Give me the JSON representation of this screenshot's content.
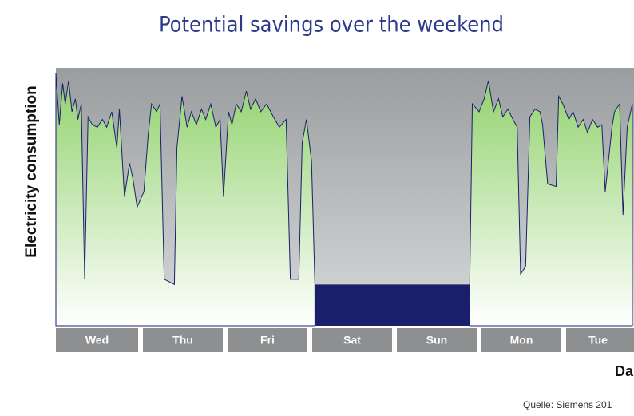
{
  "chart_data": {
    "type": "area",
    "title": "Potential savings over the weekend",
    "ylabel": "Electricity consumption",
    "xlabel": "Da",
    "source": "Quelle: Siemens 201",
    "categories": [
      "Wed",
      "Thu",
      "Fri",
      "Sat",
      "Sun",
      "Mon",
      "Tue"
    ],
    "xlim": [
      0,
      6.83
    ],
    "ylim": [
      0,
      100
    ],
    "series": [
      {
        "color": "#8fd16a",
        "x": [
          0,
          0.04,
          0.08,
          0.11,
          0.15,
          0.19,
          0.23,
          0.26,
          0.3,
          0.34,
          0.38,
          0.43,
          0.49,
          0.55,
          0.6,
          0.66,
          0.72,
          0.75,
          0.81,
          0.87,
          0.91,
          0.96,
          1.04,
          1.09,
          1.13,
          1.19,
          1.23,
          1.28,
          1.4,
          1.43,
          1.49,
          1.55,
          1.6,
          1.66,
          1.72,
          1.77,
          1.83,
          1.89,
          1.94,
          1.98,
          2.04,
          2.08,
          2.13,
          2.19,
          2.25,
          2.3,
          2.36,
          2.42,
          2.49,
          2.57,
          2.64,
          2.72,
          2.77,
          2.87,
          2.91,
          2.96,
          3.02,
          3.06,
          4.0,
          4.89,
          4.92,
          5.0,
          5.06,
          5.11,
          5.17,
          5.23,
          5.28,
          5.34,
          5.4,
          5.45,
          5.49,
          5.55,
          5.6,
          5.66,
          5.72,
          5.75,
          5.81,
          5.91,
          5.94,
          5.99,
          6.06,
          6.11,
          6.17,
          6.23,
          6.28,
          6.34,
          6.4,
          6.45,
          6.49,
          6.57,
          6.6,
          6.66,
          6.7,
          6.75,
          6.81
        ],
        "values": [
          98,
          78,
          94,
          86,
          95,
          83,
          88,
          80,
          86,
          18,
          81,
          78,
          77,
          80,
          77,
          83,
          69,
          84,
          50,
          63,
          57,
          46,
          52,
          74,
          86,
          83,
          86,
          18,
          16,
          69,
          89,
          77,
          83,
          78,
          84,
          80,
          86,
          77,
          80,
          50,
          83,
          78,
          86,
          83,
          91,
          84,
          88,
          83,
          86,
          81,
          77,
          80,
          18,
          18,
          71,
          80,
          64,
          16,
          null,
          18,
          86,
          83,
          88,
          95,
          83,
          88,
          81,
          84,
          80,
          77,
          20,
          23,
          81,
          84,
          83,
          78,
          55,
          54,
          89,
          86,
          80,
          83,
          77,
          80,
          75,
          80,
          77,
          78,
          52,
          77,
          83,
          86,
          43,
          77,
          86
        ]
      },
      {
        "color": "#1b1f6b",
        "x": [
          3.06,
          4.89
        ],
        "values": [
          16,
          16
        ]
      }
    ]
  }
}
